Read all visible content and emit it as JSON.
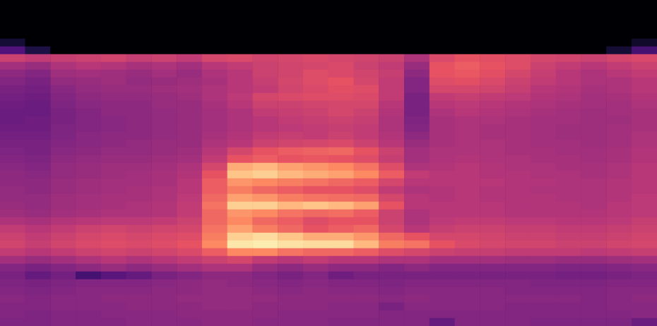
{
  "chart_data": {
    "type": "heatmap",
    "tick_labels": false,
    "color_range": [
      -80,
      0
    ],
    "cells": [
      [
        -80,
        -80,
        -80,
        -80,
        -80,
        -80,
        -80,
        -80,
        -80,
        -80,
        -80,
        -80,
        -80,
        -80,
        -80,
        -80,
        -80,
        -80,
        -80,
        -80,
        -80,
        -80,
        -80,
        -80,
        -80,
        -80
      ],
      [
        -80,
        -80,
        -80,
        -80,
        -80,
        -80,
        -80,
        -80,
        -80,
        -80,
        -80,
        -80,
        -80,
        -80,
        -80,
        -80,
        -80,
        -80,
        -80,
        -80,
        -80,
        -80,
        -80,
        -80,
        -80,
        -80
      ],
      [
        -80,
        -80,
        -80,
        -80,
        -80,
        -80,
        -80,
        -80,
        -80,
        -80,
        -80,
        -80,
        -80,
        -80,
        -80,
        -80,
        -80,
        -80,
        -80,
        -80,
        -80,
        -80,
        -80,
        -80,
        -80,
        -80
      ],
      [
        -80,
        -80,
        -80,
        -80,
        -80,
        -80,
        -80,
        -80,
        -80,
        -80,
        -80,
        -80,
        -80,
        -80,
        -80,
        -80,
        -80,
        -80,
        -80,
        -80,
        -80,
        -80,
        -80,
        -80,
        -80,
        -80
      ],
      [
        -80,
        -80,
        -80,
        -80,
        -80,
        -80,
        -80,
        -80,
        -80,
        -80,
        -80,
        -80,
        -80,
        -80,
        -80,
        -80,
        -80,
        -80,
        -80,
        -80,
        -80,
        -80,
        -80,
        -80,
        -80,
        -80
      ],
      [
        -72,
        -80,
        -80,
        -80,
        -80,
        -80,
        -80,
        -80,
        -80,
        -80,
        -80,
        -80,
        -80,
        -80,
        -80,
        -80,
        -80,
        -80,
        -80,
        -80,
        -80,
        -80,
        -80,
        -80,
        -80,
        -74
      ],
      [
        -60,
        -70,
        -80,
        -80,
        -80,
        -80,
        -80,
        -80,
        -80,
        -80,
        -80,
        -80,
        -80,
        -80,
        -80,
        -80,
        -80,
        -80,
        -80,
        -80,
        -80,
        -80,
        -80,
        -80,
        -72,
        -62
      ],
      [
        -36,
        -38,
        -37,
        -36,
        -35,
        -37,
        -36,
        -38,
        -34,
        -33,
        -35,
        -34,
        -33,
        -34,
        -35,
        -36,
        -42,
        -33,
        -30,
        -31,
        -32,
        -34,
        -35,
        -36,
        -34,
        -33
      ],
      [
        -44,
        -46,
        -42,
        -40,
        -41,
        -43,
        -42,
        -44,
        -40,
        -38,
        -36,
        -35,
        -34,
        -33,
        -36,
        -38,
        -46,
        -30,
        -28,
        -30,
        -32,
        -36,
        -38,
        -40,
        -38,
        -36
      ],
      [
        -48,
        -50,
        -45,
        -44,
        -45,
        -46,
        -44,
        -46,
        -42,
        -40,
        -36,
        -35,
        -32,
        -33,
        -35,
        -37,
        -48,
        -30,
        -29,
        -31,
        -34,
        -37,
        -40,
        -42,
        -40,
        -38
      ],
      [
        -50,
        -52,
        -47,
        -46,
        -45,
        -47,
        -46,
        -45,
        -43,
        -40,
        -37,
        -34,
        -32,
        -30,
        -34,
        -38,
        -50,
        -32,
        -31,
        -33,
        -36,
        -38,
        -40,
        -42,
        -42,
        -40
      ],
      [
        -52,
        -53,
        -49,
        -47,
        -46,
        -46,
        -45,
        -44,
        -42,
        -40,
        -38,
        -35,
        -33,
        -31,
        -32,
        -38,
        -50,
        -34,
        -34,
        -35,
        -37,
        -40,
        -41,
        -43,
        -42,
        -40
      ],
      [
        -53,
        -54,
        -50,
        -48,
        -47,
        -47,
        -46,
        -45,
        -42,
        -39,
        -34,
        -33,
        -32,
        -32,
        -33,
        -38,
        -52,
        -38,
        -37,
        -38,
        -39,
        -41,
        -42,
        -44,
        -43,
        -41
      ],
      [
        -54,
        -55,
        -51,
        -49,
        -48,
        -48,
        -46,
        -46,
        -43,
        -40,
        -36,
        -36,
        -35,
        -34,
        -34,
        -40,
        -52,
        -40,
        -39,
        -40,
        -41,
        -42,
        -43,
        -44,
        -44,
        -42
      ],
      [
        -55,
        -55,
        -52,
        -50,
        -48,
        -48,
        -47,
        -46,
        -44,
        -42,
        -38,
        -37,
        -36,
        -34,
        -36,
        -41,
        -52,
        -42,
        -40,
        -41,
        -42,
        -43,
        -44,
        -45,
        -44,
        -43
      ],
      [
        -55,
        -54,
        -52,
        -50,
        -49,
        -48,
        -47,
        -46,
        -44,
        -42,
        -40,
        -38,
        -37,
        -36,
        -37,
        -42,
        -51,
        -43,
        -42,
        -42,
        -43,
        -44,
        -44,
        -45,
        -45,
        -43
      ],
      [
        -54,
        -54,
        -51,
        -50,
        -49,
        -48,
        -47,
        -46,
        -44,
        -42,
        -40,
        -39,
        -38,
        -37,
        -38,
        -42,
        -50,
        -43,
        -42,
        -43,
        -43,
        -44,
        -45,
        -45,
        -44,
        -43
      ],
      [
        -53,
        -53,
        -51,
        -49,
        -48,
        -48,
        -47,
        -46,
        -43,
        -41,
        -38,
        -37,
        -38,
        -36,
        -38,
        -41,
        -48,
        -43,
        -42,
        -43,
        -43,
        -44,
        -45,
        -45,
        -44,
        -42
      ],
      [
        -52,
        -52,
        -50,
        -49,
        -48,
        -47,
        -46,
        -46,
        -42,
        -40,
        -36,
        -35,
        -34,
        -33,
        -36,
        -40,
        -46,
        -43,
        -42,
        -42,
        -43,
        -44,
        -44,
        -45,
        -44,
        -42
      ],
      [
        -51,
        -52,
        -49,
        -48,
        -47,
        -47,
        -46,
        -45,
        -40,
        -34,
        -30,
        -28,
        -27,
        -26,
        -30,
        -36,
        -44,
        -42,
        -42,
        -42,
        -43,
        -43,
        -44,
        -44,
        -43,
        -41
      ],
      [
        -50,
        -51,
        -48,
        -47,
        -46,
        -46,
        -45,
        -44,
        -38,
        -30,
        -28,
        -30,
        -29,
        -30,
        -32,
        -37,
        -44,
        -42,
        -41,
        -42,
        -42,
        -43,
        -43,
        -44,
        -43,
        -41
      ],
      [
        -49,
        -50,
        -47,
        -46,
        -45,
        -45,
        -44,
        -42,
        -34,
        -14,
        -12,
        -16,
        -18,
        -20,
        -24,
        -32,
        -42,
        -41,
        -40,
        -41,
        -42,
        -42,
        -43,
        -43,
        -42,
        -40
      ],
      [
        -48,
        -49,
        -47,
        -46,
        -45,
        -44,
        -43,
        -41,
        -30,
        -10,
        -8,
        -12,
        -14,
        -16,
        -20,
        -28,
        -38,
        -40,
        -40,
        -41,
        -41,
        -42,
        -42,
        -43,
        -42,
        -40
      ],
      [
        -48,
        -48,
        -46,
        -45,
        -44,
        -44,
        -43,
        -40,
        -28,
        -18,
        -20,
        -22,
        -24,
        -26,
        -28,
        -34,
        -40,
        -40,
        -40,
        -40,
        -41,
        -41,
        -42,
        -42,
        -41,
        -40
      ],
      [
        -47,
        -48,
        -46,
        -45,
        -44,
        -43,
        -42,
        -40,
        -28,
        -22,
        -26,
        -28,
        -30,
        -30,
        -32,
        -38,
        -42,
        -41,
        -40,
        -41,
        -41,
        -42,
        -42,
        -42,
        -41,
        -40
      ],
      [
        -47,
        -47,
        -45,
        -44,
        -43,
        -43,
        -42,
        -39,
        -26,
        -16,
        -18,
        -22,
        -24,
        -25,
        -26,
        -34,
        -40,
        -41,
        -40,
        -41,
        -41,
        -41,
        -42,
        -42,
        -41,
        -39
      ],
      [
        -46,
        -47,
        -45,
        -44,
        -43,
        -42,
        -41,
        -38,
        -24,
        -8,
        -8,
        -12,
        -10,
        -12,
        -16,
        -30,
        -40,
        -40,
        -40,
        -40,
        -41,
        -41,
        -41,
        -42,
        -40,
        -39
      ],
      [
        -45,
        -46,
        -44,
        -43,
        -42,
        -42,
        -41,
        -38,
        -26,
        -18,
        -20,
        -24,
        -26,
        -25,
        -28,
        -36,
        -42,
        -40,
        -40,
        -40,
        -41,
        -41,
        -41,
        -41,
        -40,
        -39
      ],
      [
        -42,
        -43,
        -41,
        -40,
        -39,
        -39,
        -38,
        -36,
        -26,
        -20,
        -26,
        -28,
        -32,
        -30,
        -30,
        -36,
        -42,
        -39,
        -38,
        -38,
        -39,
        -39,
        -40,
        -40,
        -39,
        -37
      ],
      [
        -38,
        -40,
        -38,
        -36,
        -35,
        -36,
        -35,
        -34,
        -24,
        -16,
        -22,
        -26,
        -30,
        -28,
        -26,
        -34,
        -40,
        -37,
        -36,
        -36,
        -37,
        -37,
        -38,
        -38,
        -37,
        -36
      ],
      [
        -36,
        -38,
        -36,
        -34,
        -33,
        -34,
        -33,
        -32,
        -22,
        -8,
        -6,
        -10,
        -14,
        -14,
        -18,
        -26,
        -30,
        -34,
        -34,
        -35,
        -36,
        -36,
        -37,
        -37,
        -36,
        -35
      ],
      [
        -35,
        -37,
        -35,
        -33,
        -32,
        -33,
        -32,
        -30,
        -20,
        -4,
        -3,
        -5,
        -6,
        -6,
        -12,
        -22,
        -24,
        -30,
        -33,
        -34,
        -35,
        -35,
        -36,
        -36,
        -35,
        -34
      ],
      [
        -38,
        -40,
        -38,
        -36,
        -35,
        -36,
        -35,
        -33,
        -28,
        -20,
        -20,
        -24,
        -26,
        -26,
        -28,
        -32,
        -34,
        -36,
        -37,
        -37,
        -38,
        -38,
        -38,
        -39,
        -38,
        -37
      ],
      [
        -44,
        -46,
        -44,
        -42,
        -40,
        -42,
        -40,
        -38,
        -36,
        -34,
        -38,
        -40,
        -38,
        -40,
        -40,
        -42,
        -42,
        -44,
        -44,
        -44,
        -45,
        -45,
        -46,
        -46,
        -45,
        -44
      ],
      [
        -50,
        -52,
        -50,
        -48,
        -46,
        -48,
        -46,
        -44,
        -42,
        -42,
        -46,
        -48,
        -46,
        -48,
        -48,
        -50,
        -48,
        -50,
        -50,
        -50,
        -50,
        -50,
        -51,
        -51,
        -50,
        -49
      ],
      [
        -52,
        -56,
        -53,
        -62,
        -58,
        -56,
        -52,
        -50,
        -48,
        -48,
        -50,
        -52,
        -50,
        -54,
        -52,
        -52,
        -52,
        -52,
        -52,
        -52,
        -52,
        -52,
        -53,
        -53,
        -52,
        -51
      ],
      [
        -51,
        -52,
        -51,
        -50,
        -50,
        -50,
        -49,
        -48,
        -47,
        -48,
        -49,
        -50,
        -49,
        -50,
        -50,
        -51,
        -50,
        -50,
        -50,
        -50,
        -50,
        -51,
        -51,
        -51,
        -50,
        -50
      ],
      [
        -50,
        -51,
        -50,
        -49,
        -49,
        -49,
        -48,
        -48,
        -47,
        -47,
        -48,
        -49,
        -48,
        -49,
        -49,
        -50,
        -49,
        -49,
        -49,
        -49,
        -50,
        -50,
        -50,
        -50,
        -49,
        -49
      ],
      [
        -49,
        -50,
        -49,
        -49,
        -48,
        -48,
        -48,
        -47,
        -47,
        -47,
        -47,
        -48,
        -48,
        -48,
        -48,
        -49,
        -48,
        -49,
        -49,
        -49,
        -49,
        -49,
        -49,
        -50,
        -49,
        -48
      ],
      [
        -50,
        -50,
        -49,
        -49,
        -49,
        -48,
        -48,
        -48,
        -47,
        -47,
        -48,
        -48,
        -48,
        -49,
        -49,
        -52,
        -49,
        -49,
        -49,
        -49,
        -50,
        -50,
        -50,
        -50,
        -49,
        -49
      ],
      [
        -50,
        -51,
        -50,
        -50,
        -49,
        -49,
        -49,
        -48,
        -48,
        -48,
        -48,
        -49,
        -49,
        -49,
        -49,
        -50,
        -50,
        -50,
        -50,
        -50,
        -50,
        -50,
        -50,
        -50,
        -50,
        -49
      ],
      [
        -51,
        -51,
        -50,
        -50,
        -50,
        -49,
        -49,
        -49,
        -48,
        -48,
        -49,
        -49,
        -49,
        -50,
        -50,
        -50,
        -50,
        -56,
        -50,
        -50,
        -50,
        -51,
        -51,
        -51,
        -51,
        -55
      ]
    ]
  }
}
